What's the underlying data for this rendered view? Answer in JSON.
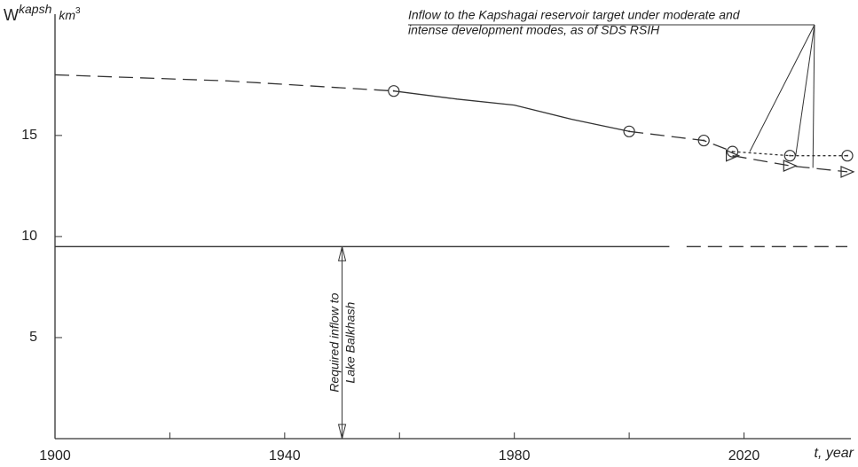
{
  "chart_data": {
    "type": "line",
    "y_label": "W",
    "y_label_sup": "kapsh",
    "y_unit": "km",
    "y_unit_sup": "3",
    "x_label": "t, year",
    "xlim": [
      1900,
      2038
    ],
    "ylim": [
      0,
      21
    ],
    "xticks": [
      1900,
      1940,
      1980,
      2020
    ],
    "xminor": [
      1920,
      1960,
      2000
    ],
    "yticks": [
      5,
      10,
      15
    ],
    "grid": false,
    "color": "#333333",
    "series": [
      {
        "x": [
          1900,
          1930,
          1959
        ],
        "values": [
          18,
          17.7,
          17.2
        ],
        "line": "dashed"
      },
      {
        "x": [
          1959,
          1970,
          1980,
          1990,
          2000
        ],
        "values": [
          17.2,
          16.8,
          16.5,
          15.8,
          15.2
        ],
        "line": "solid"
      },
      {
        "x": [
          2000,
          2013,
          2018
        ],
        "values": [
          15.2,
          14.75,
          14.2
        ],
        "line": "dashed"
      },
      {
        "x": [
          2018,
          2028,
          2038
        ],
        "values": [
          14.2,
          14.0,
          14.0
        ],
        "line": "dotted"
      },
      {
        "x": [
          2018,
          2028,
          2038
        ],
        "values": [
          14.0,
          13.5,
          13.2
        ],
        "line": "dashed",
        "marker": "triangle"
      },
      {
        "x": [
          1959,
          2000,
          2013,
          2018,
          2028,
          2038
        ],
        "values": [
          17.2,
          15.2,
          14.75,
          14.2,
          14.0,
          14.0
        ],
        "line": "none",
        "marker": "circle"
      },
      {
        "x": [
          1900,
          2007
        ],
        "values": [
          9.5,
          9.5
        ],
        "line": "solid"
      },
      {
        "x": [
          2010,
          2038
        ],
        "values": [
          9.5,
          9.5
        ],
        "line": "dashed"
      }
    ],
    "annotations": [
      {
        "text": [
          "Inflow to the Kapshagai reservoir target under moderate and",
          "intense development modes, as of SDS  RSIH"
        ],
        "targets": [
          [
            2021,
            14.2
          ],
          [
            2029,
            14.0
          ],
          [
            2032,
            13.4
          ]
        ]
      },
      {
        "text": [
          "Required inflow to",
          "Lake Balkhash"
        ],
        "x": 1950,
        "y": [
          0,
          9.5
        ]
      }
    ]
  }
}
